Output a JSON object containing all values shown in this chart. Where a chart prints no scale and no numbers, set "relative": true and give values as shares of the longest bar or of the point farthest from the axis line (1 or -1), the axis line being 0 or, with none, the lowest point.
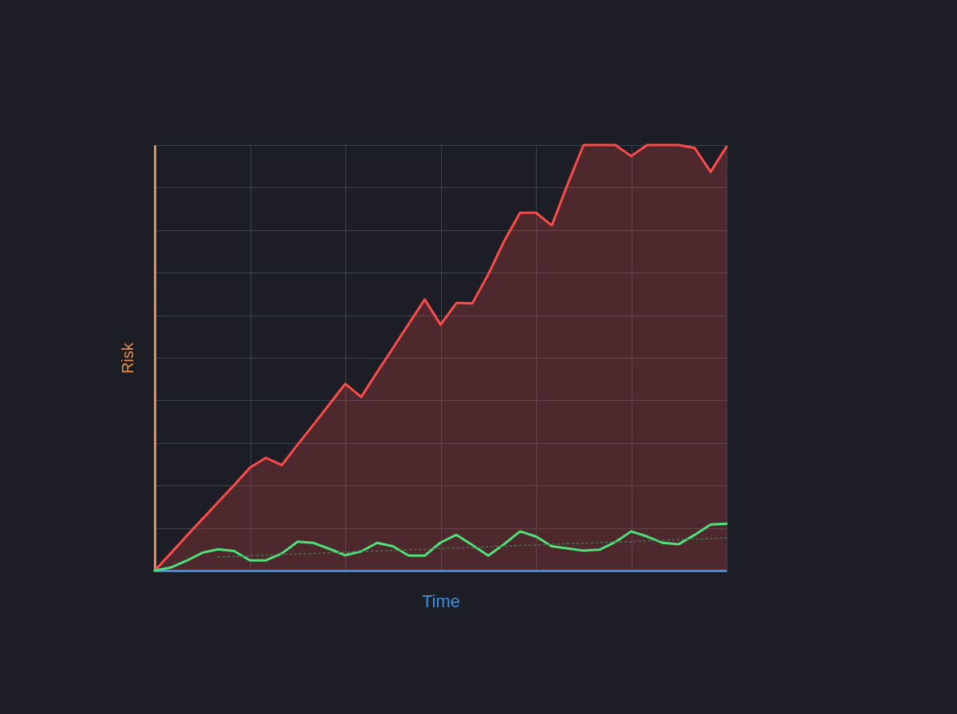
{
  "chart_data": {
    "type": "line",
    "xlabel": "Time",
    "ylabel": "Risk",
    "relative": true,
    "grid": true,
    "categories": [
      null,
      null,
      null,
      null,
      null,
      null,
      null,
      null,
      null,
      null,
      null,
      null,
      null,
      null,
      null,
      null,
      null,
      null,
      null,
      null,
      null,
      null,
      null,
      null,
      null,
      null,
      null,
      null,
      null,
      null,
      null,
      null,
      null,
      null,
      null,
      null,
      null
    ],
    "series": [
      {
        "type": "area",
        "color": "#ff4a4a",
        "values": [
          0,
          0.04,
          0.081,
          0.121,
          0.161,
          0.201,
          0.242,
          0.265,
          0.248,
          0.296,
          0.343,
          0.391,
          0.439,
          0.408,
          0.466,
          0.523,
          0.58,
          0.637,
          0.578,
          0.629,
          0.628,
          0.696,
          0.774,
          0.841,
          0.841,
          0.811,
          0.908,
          1,
          1,
          1,
          0.974,
          1,
          1,
          1,
          0.993,
          0.937,
          0.996
        ]
      },
      {
        "color": "#4fe07a",
        "values": [
          0,
          0.007,
          0.023,
          0.042,
          0.05,
          0.046,
          0.024,
          0.024,
          0.04,
          0.068,
          0.065,
          0.051,
          0.036,
          0.045,
          0.065,
          0.057,
          0.035,
          0.035,
          0.066,
          0.084,
          0.06,
          0.035,
          0.062,
          0.092,
          0.08,
          0.057,
          0.052,
          0.047,
          0.049,
          0.067,
          0.092,
          0.08,
          0.065,
          0.062,
          0.084,
          0.108,
          0.11
        ]
      },
      {
        "color": "#3f7a55",
        "line_style": "dotted",
        "values": [
          null,
          null,
          null,
          null,
          0.032,
          0.033,
          0.035,
          0.036,
          0.038,
          0.039,
          0.04,
          0.042,
          0.043,
          0.045,
          0.046,
          0.047,
          0.049,
          0.05,
          0.052,
          0.053,
          0.054,
          0.056,
          0.057,
          0.059,
          0.06,
          0.062,
          0.063,
          0.064,
          0.066,
          0.067,
          0.068,
          0.07,
          0.071,
          0.073,
          0.074,
          0.075,
          0.077
        ]
      }
    ]
  }
}
